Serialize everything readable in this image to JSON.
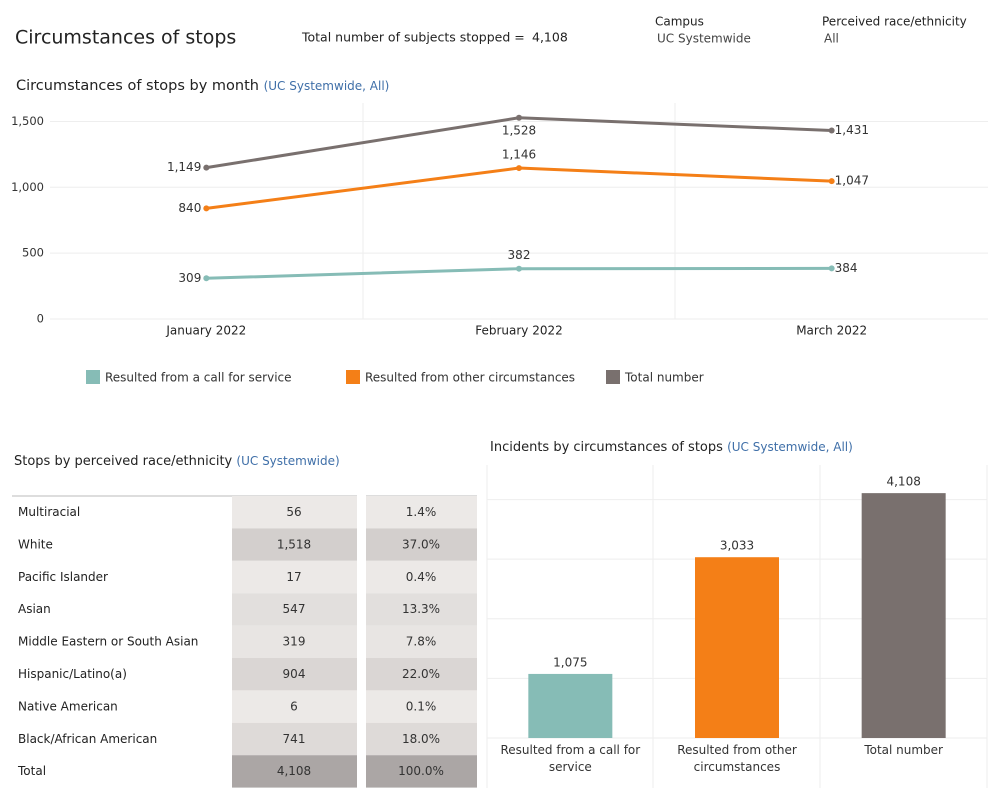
{
  "header": {
    "title": "Circumstances of stops",
    "total_label": "Total number of subjects stopped =",
    "total_value": "4,108"
  },
  "filters": [
    {
      "label": "Campus",
      "value": "UC Systemwide"
    },
    {
      "label": "Perceived race/ethnicity",
      "value": "All"
    }
  ],
  "chart_data": [
    {
      "type": "line",
      "title": "Circumstances of stops by month",
      "subtitle": "(UC Systemwide, All)",
      "categories": [
        "January 2022",
        "February 2022",
        "March 2022"
      ],
      "series": [
        {
          "name": "Resulted from a call for service",
          "color": "#86bcb6",
          "values": [
            309,
            382,
            384
          ],
          "value_labels": [
            "309",
            "382",
            "384"
          ]
        },
        {
          "name": "Resulted from other circumstances",
          "color": "#f47f17",
          "values": [
            840,
            1146,
            1047
          ],
          "value_labels": [
            "840",
            "1,146",
            "1,047"
          ]
        },
        {
          "name": "Total number",
          "color": "#79706e",
          "values": [
            1149,
            1528,
            1431
          ],
          "value_labels": [
            "1,149",
            "1,528",
            "1,431"
          ]
        }
      ],
      "ylim": [
        0,
        1640
      ],
      "yticks": [
        0,
        500,
        {
          "value": 1000,
          "label": "1,000"
        },
        {
          "value": 1500,
          "label": "1,500"
        }
      ],
      "grid": true,
      "legend": "bottom"
    },
    {
      "type": "bar",
      "title": "Incidents by circumstances of stops",
      "subtitle": "(UC Systemwide, All)",
      "categories": [
        "Resulted from a call for service",
        "Resulted from other circumstances",
        "Total number"
      ],
      "values": [
        1075,
        3033,
        4108
      ],
      "value_labels": [
        "1,075",
        "3,033",
        "4,108"
      ],
      "colors": [
        "#86bcb6",
        "#f47f17",
        "#79706e"
      ],
      "ylim": [
        0,
        4580
      ],
      "yticks": [
        0,
        1000,
        2000,
        3000,
        4000
      ],
      "grid": true
    }
  ],
  "table": {
    "title": "Stops by perceived race/ethnicity",
    "subtitle": "(UC Systemwide)",
    "rows": [
      [
        "Multiracial",
        "56",
        "1.4%"
      ],
      [
        "White",
        "1,518",
        "37.0%"
      ],
      [
        "Pacific Islander",
        "17",
        "0.4%"
      ],
      [
        "Asian",
        "547",
        "13.3%"
      ],
      [
        "Middle Eastern or South Asian",
        "319",
        "7.8%"
      ],
      [
        "Hispanic/Latino(a)",
        "904",
        "22.0%"
      ],
      [
        "Native American",
        "6",
        "0.1%"
      ],
      [
        "Black/African American",
        "741",
        "18.0%"
      ],
      [
        "Total",
        "4,108",
        "100.0%"
      ]
    ]
  }
}
